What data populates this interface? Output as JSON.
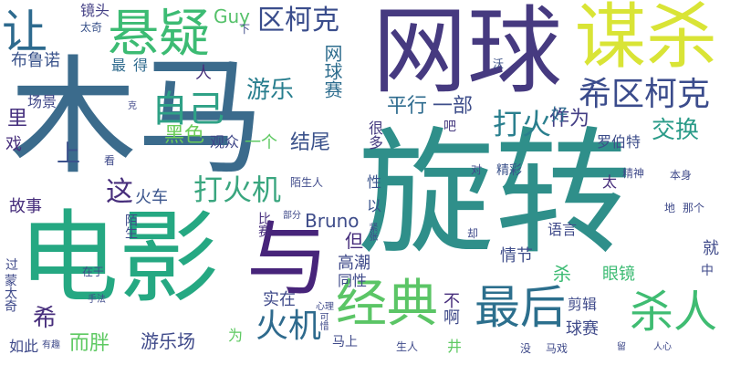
{
  "words": [
    {
      "text": "木马",
      "color": "#3b6b8c"
    },
    {
      "text": "旋转",
      "color": "#2f8f8a"
    },
    {
      "text": "电影",
      "color": "#25a882"
    },
    {
      "text": "网球",
      "color": "#463a80"
    },
    {
      "text": "与",
      "color": "#47247a"
    },
    {
      "text": "谋杀",
      "color": "#d9e436"
    },
    {
      "text": "让",
      "color": "#2d6a8e"
    },
    {
      "text": "悬疑",
      "color": "#3cbb73"
    },
    {
      "text": "区柯克",
      "color": "#3a4d8c"
    },
    {
      "text": "希区柯克",
      "color": "#3b4c8c"
    },
    {
      "text": "经典",
      "color": "#5bc566"
    },
    {
      "text": "最后",
      "color": "#2c6f8d"
    },
    {
      "text": "杀人",
      "color": "#3fbc72"
    },
    {
      "text": "火机",
      "color": "#2e6a8d"
    },
    {
      "text": "打火机",
      "color": "#3aa67f"
    },
    {
      "text": "自己",
      "color": "#2fa186"
    },
    {
      "text": "游乐",
      "color": "#287e8e"
    },
    {
      "text": "打火",
      "color": "#2a7f8e"
    },
    {
      "text": "Guy",
      "color": "#55c16a"
    },
    {
      "text": "镜头",
      "color": "#433f85"
    },
    {
      "text": "太奇",
      "color": "#3a538b"
    },
    {
      "text": "下",
      "color": "#3f4b8a"
    },
    {
      "text": "布鲁诺",
      "color": "#3a538b"
    },
    {
      "text": "最",
      "color": "#2f6b8e"
    },
    {
      "text": "得",
      "color": "#2f6b8e"
    },
    {
      "text": "人",
      "color": "#452f7b"
    },
    {
      "text": "网球赛",
      "color": "#2e6d8e"
    },
    {
      "text": "沃",
      "color": "#3f5589"
    },
    {
      "text": "场景",
      "color": "#3f4788"
    },
    {
      "text": "克",
      "color": "#3f4788"
    },
    {
      "text": "平行",
      "color": "#2e6b8e"
    },
    {
      "text": "一部",
      "color": "#3d4d8a"
    },
    {
      "text": "里",
      "color": "#46307e"
    },
    {
      "text": "作为",
      "color": "#433e85"
    },
    {
      "text": "好",
      "color": "#2e6b8e"
    },
    {
      "text": "交换",
      "color": "#2a9b88"
    },
    {
      "text": "罗伯特",
      "color": "#3d4d8a"
    },
    {
      "text": "黑色",
      "color": "#6ccd5a"
    },
    {
      "text": "观众",
      "color": "#3f4788"
    },
    {
      "text": "一个",
      "color": "#5ec962"
    },
    {
      "text": "结尾",
      "color": "#3b528b"
    },
    {
      "text": "很多",
      "color": "#463a80"
    },
    {
      "text": "吧",
      "color": "#463a80"
    },
    {
      "text": "戏",
      "color": "#472e7c"
    },
    {
      "text": "上",
      "color": "#3b528b"
    },
    {
      "text": "看",
      "color": "#3f4a8a"
    },
    {
      "text": "这",
      "color": "#472e7c"
    },
    {
      "text": "火车",
      "color": "#3a548c"
    },
    {
      "text": "精彩",
      "color": "#3b528b"
    },
    {
      "text": "对",
      "color": "#3f4a8a"
    },
    {
      "text": "太",
      "color": "#472e7c"
    },
    {
      "text": "精神",
      "color": "#3f4a8a"
    },
    {
      "text": "本身",
      "color": "#3f4a8a"
    },
    {
      "text": "陌生人",
      "color": "#3f4a8a"
    },
    {
      "text": "以",
      "color": "#3a548c"
    },
    {
      "text": "性",
      "color": "#3a548c"
    },
    {
      "text": "地",
      "color": "#3f4a8a"
    },
    {
      "text": "那个",
      "color": "#3f4a8a"
    },
    {
      "text": "故事",
      "color": "#472e7c"
    },
    {
      "text": "陌生",
      "color": "#3f4a8a"
    },
    {
      "text": "部分",
      "color": "#3f4a8a"
    },
    {
      "text": "Bruno",
      "color": "#3e4c8a"
    },
    {
      "text": "但",
      "color": "#472e7c"
    },
    {
      "text": "比赛",
      "color": "#472e7c"
    },
    {
      "text": "紧张",
      "color": "#3f4a8a"
    },
    {
      "text": "却",
      "color": "#3f4a8a"
    },
    {
      "text": "语言",
      "color": "#3f4a8a"
    },
    {
      "text": "就",
      "color": "#3f4a8a"
    },
    {
      "text": "过",
      "color": "#3f4a8a"
    },
    {
      "text": "高潮",
      "color": "#3f4a8a"
    },
    {
      "text": "情节",
      "color": "#3e4c8a"
    },
    {
      "text": "杀",
      "color": "#3cbb73"
    },
    {
      "text": "眼镜",
      "color": "#3cbb73"
    },
    {
      "text": "中",
      "color": "#3f4a8a"
    },
    {
      "text": "在于",
      "color": "#3f4a8a"
    },
    {
      "text": "同性",
      "color": "#3f4a8a"
    },
    {
      "text": "蒙太奇",
      "color": "#3f4a8a"
    },
    {
      "text": "实在",
      "color": "#3f4a8a"
    },
    {
      "text": "不",
      "color": "#472e7c"
    },
    {
      "text": "剪辑",
      "color": "#3f4a8a"
    },
    {
      "text": "手法",
      "color": "#3f4a8a"
    },
    {
      "text": "心理",
      "color": "#3f4a8a"
    },
    {
      "text": "希",
      "color": "#472e7c"
    },
    {
      "text": "而胖",
      "color": "#5ec962"
    },
    {
      "text": "游乐场",
      "color": "#3f4a8a"
    },
    {
      "text": "可惜",
      "color": "#3f4a8a"
    },
    {
      "text": "马上",
      "color": "#3f4a8a"
    },
    {
      "text": "啊",
      "color": "#3f4a8a"
    },
    {
      "text": "导演",
      "color": "#3f4a8a"
    },
    {
      "text": "球赛",
      "color": "#3f4a8a"
    },
    {
      "text": "为",
      "color": "#5ec962"
    },
    {
      "text": "如此",
      "color": "#3f4a8a"
    },
    {
      "text": "有趣",
      "color": "#3f4a8a"
    },
    {
      "text": "生人",
      "color": "#3f4a8a"
    },
    {
      "text": "井",
      "color": "#5ec962"
    },
    {
      "text": "没",
      "color": "#3f4a8a"
    },
    {
      "text": "马戏",
      "color": "#3f4a8a"
    },
    {
      "text": "留",
      "color": "#3f4a8a"
    },
    {
      "text": "人心",
      "color": "#3f4a8a"
    }
  ]
}
